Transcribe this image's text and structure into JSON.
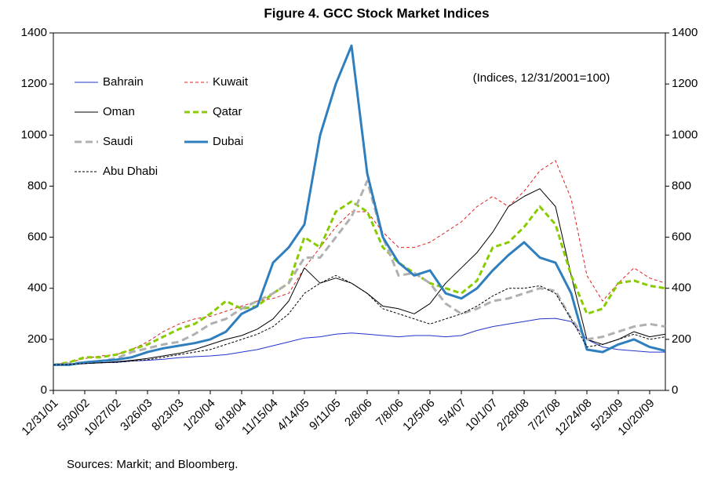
{
  "chart_data": {
    "type": "line",
    "title": "Figure 4. GCC Stock Market Indices",
    "annotation": "(Indices, 12/31/2001=100)",
    "source": "Sources:  Markit; and Bloomberg.",
    "categories": [
      "12/31/01",
      null,
      "5/30/02",
      null,
      "10/27/02",
      null,
      "3/26/03",
      null,
      "8/23/03",
      null,
      "1/20/04",
      null,
      "6/18/04",
      null,
      "11/15/04",
      null,
      "4/14/05",
      null,
      "9/11/05",
      null,
      "2/8/06",
      null,
      "7/8/06",
      null,
      "12/5/06",
      null,
      "5/4/07",
      null,
      "10/1/07",
      null,
      "2/28/08",
      null,
      "7/27/08",
      null,
      "12/24/08",
      null,
      "5/23/09",
      null,
      "10/20/09",
      null
    ],
    "ylim": [
      0,
      1400
    ],
    "yticks": [
      0,
      200,
      400,
      600,
      800,
      1000,
      1200,
      1400
    ],
    "y2lim": [
      0,
      1400
    ],
    "y2ticks": [
      0,
      200,
      400,
      600,
      800,
      1000,
      1200,
      1400
    ],
    "series": [
      {
        "name": "Bahrain",
        "color": "#2233cc",
        "width": 1,
        "dash": "none",
        "values": [
          100,
          100,
          105,
          108,
          110,
          115,
          118,
          122,
          128,
          132,
          135,
          140,
          150,
          160,
          175,
          190,
          205,
          210,
          220,
          225,
          220,
          215,
          210,
          215,
          215,
          210,
          215,
          235,
          250,
          260,
          270,
          280,
          282,
          270,
          200,
          170,
          160,
          155,
          150,
          150
        ]
      },
      {
        "name": "Kuwait",
        "color": "#e02020",
        "width": 1,
        "dash": "4,3",
        "values": [
          100,
          110,
          125,
          135,
          140,
          160,
          190,
          230,
          260,
          280,
          290,
          310,
          330,
          350,
          360,
          380,
          480,
          560,
          640,
          700,
          700,
          620,
          560,
          560,
          580,
          620,
          660,
          720,
          760,
          720,
          780,
          860,
          900,
          750,
          450,
          350,
          420,
          480,
          440,
          420
        ]
      },
      {
        "name": "Oman",
        "color": "#000000",
        "width": 1,
        "dash": "none",
        "values": [
          100,
          100,
          105,
          108,
          112,
          118,
          125,
          135,
          145,
          160,
          180,
          200,
          215,
          240,
          280,
          350,
          480,
          420,
          440,
          420,
          380,
          330,
          320,
          300,
          340,
          420,
          480,
          540,
          620,
          720,
          760,
          790,
          720,
          450,
          200,
          180,
          200,
          230,
          210,
          220
        ]
      },
      {
        "name": "Qatar",
        "color": "#88cc00",
        "width": 3,
        "dash": "7,4",
        "values": [
          100,
          110,
          130,
          130,
          140,
          160,
          180,
          210,
          240,
          260,
          300,
          350,
          320,
          330,
          380,
          420,
          600,
          560,
          700,
          740,
          700,
          560,
          500,
          460,
          420,
          400,
          380,
          430,
          560,
          580,
          640,
          720,
          650,
          450,
          300,
          320,
          420,
          430,
          410,
          400
        ]
      },
      {
        "name": "Saudi",
        "color": "#b0b0b0",
        "width": 3,
        "dash": "9,5",
        "values": [
          100,
          105,
          110,
          115,
          125,
          150,
          165,
          180,
          190,
          220,
          260,
          280,
          320,
          350,
          380,
          420,
          520,
          520,
          600,
          680,
          820,
          600,
          450,
          460,
          420,
          340,
          300,
          320,
          350,
          360,
          380,
          400,
          390,
          280,
          200,
          210,
          230,
          250,
          260,
          250
        ]
      },
      {
        "name": "Dubai",
        "color": "#2f7fbf",
        "width": 3,
        "dash": "none",
        "values": [
          100,
          100,
          110,
          115,
          120,
          130,
          150,
          165,
          175,
          185,
          200,
          230,
          300,
          330,
          500,
          560,
          650,
          1000,
          1200,
          1350,
          850,
          600,
          500,
          450,
          470,
          380,
          360,
          400,
          470,
          530,
          580,
          520,
          500,
          380,
          160,
          150,
          180,
          200,
          170,
          155
        ]
      },
      {
        "name": "Abu Dhabi",
        "color": "#000000",
        "width": 1,
        "dash": "3,2",
        "values": [
          100,
          102,
          105,
          108,
          110,
          115,
          120,
          130,
          140,
          150,
          160,
          180,
          200,
          220,
          250,
          300,
          380,
          420,
          450,
          420,
          380,
          320,
          300,
          280,
          260,
          280,
          300,
          330,
          370,
          400,
          400,
          410,
          380,
          280,
          170,
          180,
          200,
          220,
          200,
          210
        ]
      }
    ]
  }
}
